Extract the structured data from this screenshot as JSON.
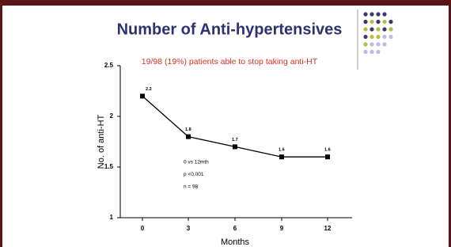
{
  "chart_data": {
    "type": "line",
    "title": "Number of Anti-hypertensives",
    "subtitle": "19/98 (19%) patients able to stop taking anti-HT",
    "x_label": "Months",
    "y_label": "No. of anti-HT",
    "annotations": [
      "0 vs 12mth",
      "p <0.001",
      "n = 98"
    ],
    "categories": [
      "0",
      "3",
      "6",
      "9",
      "12"
    ],
    "values": [
      2.2,
      1.8,
      1.7,
      1.6,
      1.6
    ],
    "color": "#000000",
    "data_labels": true,
    "ylim": [
      1,
      2.5
    ],
    "yticks": [
      1,
      1.5,
      2,
      2.5
    ]
  }
}
